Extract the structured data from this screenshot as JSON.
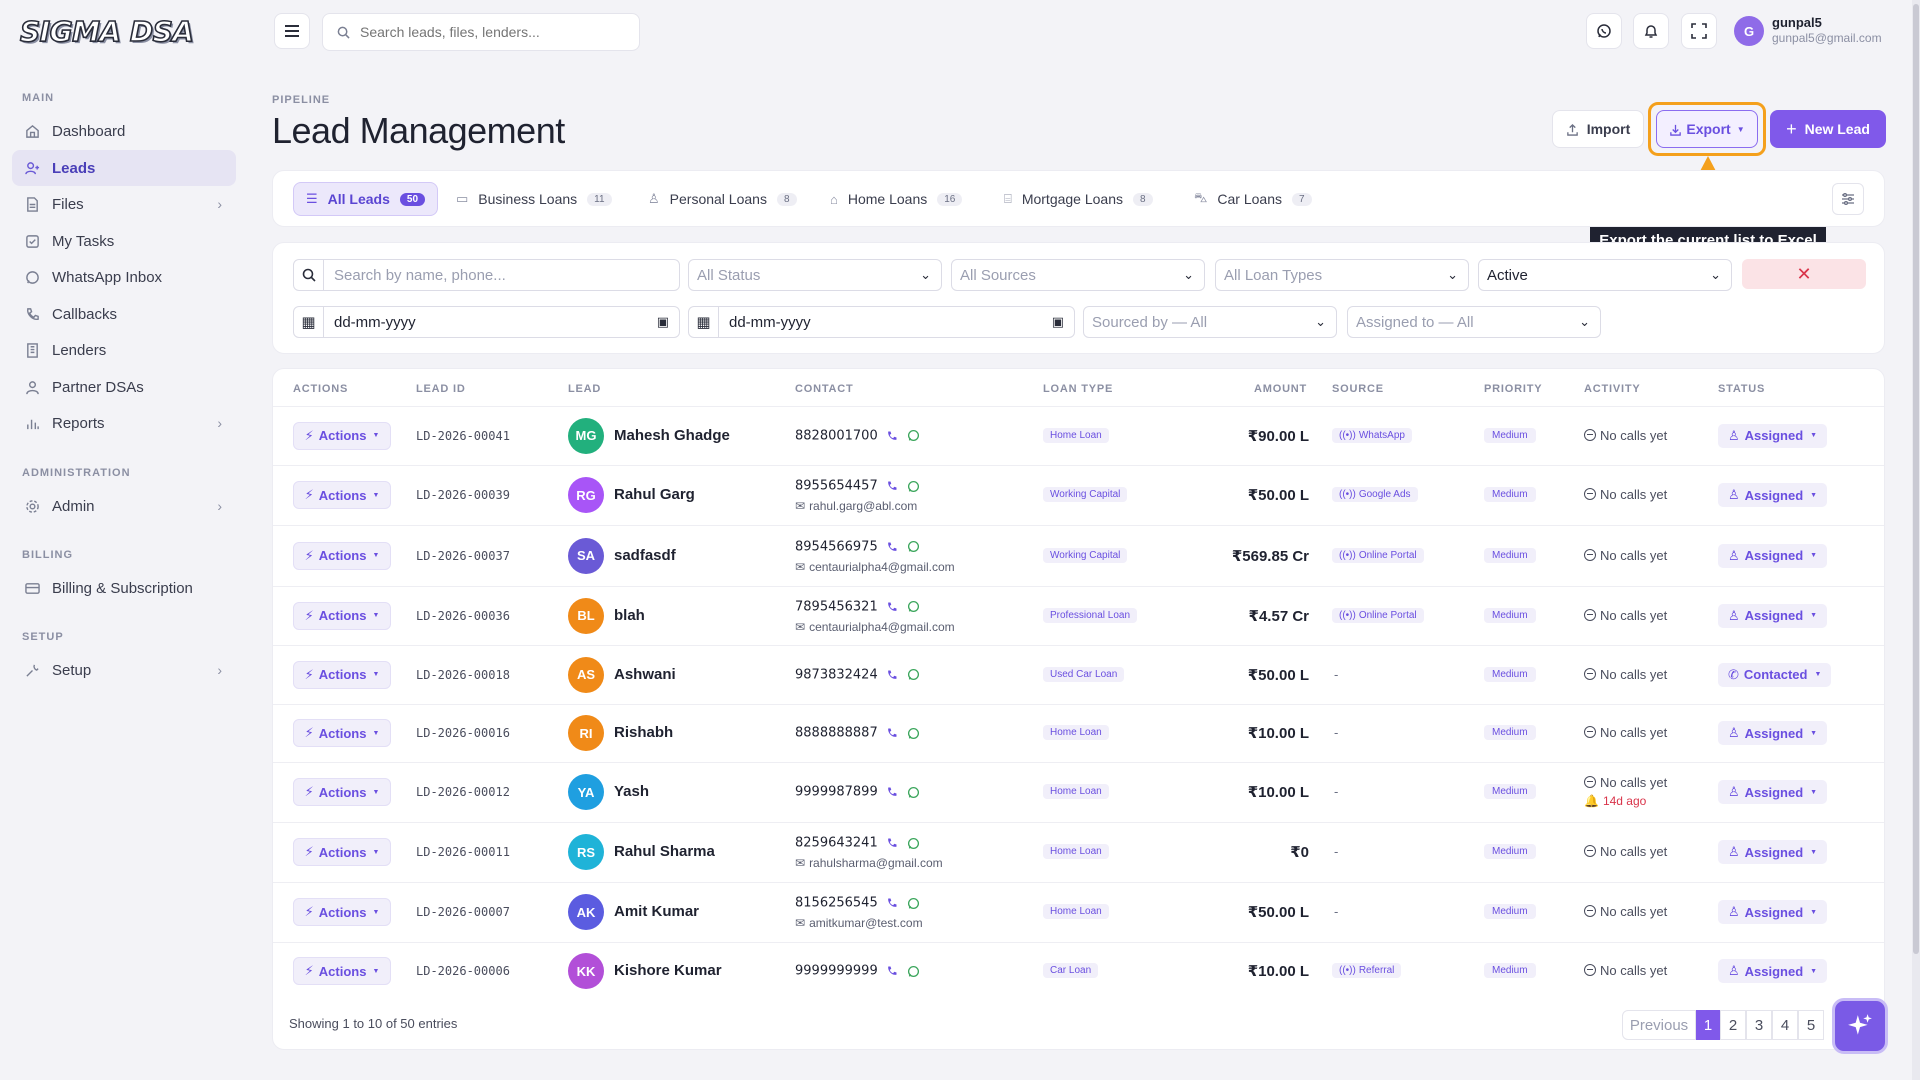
{
  "brand": {
    "logo_text": "SIGMA DSA"
  },
  "sidebar": {
    "sections": {
      "main": "MAIN",
      "administration": "ADMINISTRATION",
      "billing": "BILLING",
      "setup": "SETUP"
    },
    "items": [
      {
        "label": "Dashboard",
        "icon": "home-icon"
      },
      {
        "label": "Leads",
        "icon": "user-plus-icon",
        "active": true
      },
      {
        "label": "Files",
        "icon": "file-icon",
        "has_children": true
      },
      {
        "label": "My Tasks",
        "icon": "task-icon"
      },
      {
        "label": "WhatsApp Inbox",
        "icon": "whatsapp-icon"
      },
      {
        "label": "Callbacks",
        "icon": "phone-icon"
      },
      {
        "label": "Lenders",
        "icon": "building-icon"
      },
      {
        "label": "Partner DSAs",
        "icon": "users-icon"
      },
      {
        "label": "Reports",
        "icon": "bar-chart-icon",
        "has_children": true
      },
      {
        "label": "Admin",
        "icon": "gear-icon",
        "has_children": true
      },
      {
        "label": "Billing & Subscription",
        "icon": "card-icon"
      },
      {
        "label": "Setup",
        "icon": "wrench-icon",
        "has_children": true
      }
    ]
  },
  "topbar": {
    "search_placeholder": "Search leads, files, lenders...",
    "user": {
      "initial": "G",
      "name": "gunpal5",
      "email": "gunpal5@gmail.com"
    }
  },
  "page": {
    "eyebrow": "PIPELINE",
    "title": "Lead Management",
    "buttons": {
      "import": "Import",
      "export": "Export",
      "new_lead": "New Lead"
    },
    "tooltip": "Export the current list to Excel"
  },
  "tabs": [
    {
      "label": "All Leads",
      "count": "50",
      "active": true
    },
    {
      "label": "Business Loans",
      "count": "11"
    },
    {
      "label": "Personal Loans",
      "count": "8"
    },
    {
      "label": "Home Loans",
      "count": "16"
    },
    {
      "label": "Mortgage Loans",
      "count": "8"
    },
    {
      "label": "Car Loans",
      "count": "7"
    }
  ],
  "filters": {
    "search_placeholder": "Search by name, phone...",
    "status": "All Status",
    "sources": "All Sources",
    "loan_types": "All Loan Types",
    "active": "Active",
    "date_from": "dd-mm-yyyy",
    "date_to": "dd-mm-yyyy",
    "sourced_by": "Sourced by — All",
    "assigned_to": "Assigned to — All"
  },
  "table": {
    "headers": [
      "ACTIONS",
      "LEAD ID",
      "LEAD",
      "CONTACT",
      "LOAN TYPE",
      "AMOUNT",
      "SOURCE",
      "PRIORITY",
      "ACTIVITY",
      "STATUS"
    ],
    "actions_label": "Actions",
    "rows": [
      {
        "id": "LD-2026-00041",
        "initials": "MG",
        "avatar_color": "#22b07d",
        "name": "Mahesh Ghadge",
        "phone": "8828001700",
        "email": "",
        "loan": "Home Loan",
        "amount": "₹90.00 L",
        "source": "WhatsApp",
        "priority": "Medium",
        "activity": "No calls yet",
        "activity_ago": "",
        "status": "Assigned"
      },
      {
        "id": "LD-2026-00039",
        "initials": "RG",
        "avatar_color": "#a855f7",
        "name": "Rahul Garg",
        "phone": "8955654457",
        "email": "rahul.garg@abl.com",
        "loan": "Working Capital",
        "amount": "₹50.00 L",
        "source": "Google Ads",
        "priority": "Medium",
        "activity": "No calls yet",
        "activity_ago": "",
        "status": "Assigned"
      },
      {
        "id": "LD-2026-00037",
        "initials": "SA",
        "avatar_color": "#6a5ad6",
        "name": "sadfasdf",
        "phone": "8954566975",
        "email": "centaurialpha4@gmail.com",
        "loan": "Working Capital",
        "amount": "₹569.85 Cr",
        "source": "Online Portal",
        "priority": "Medium",
        "activity": "No calls yet",
        "activity_ago": "",
        "status": "Assigned"
      },
      {
        "id": "LD-2026-00036",
        "initials": "BL",
        "avatar_color": "#f08a18",
        "name": "blah",
        "phone": "7895456321",
        "email": "centaurialpha4@gmail.com",
        "loan": "Professional Loan",
        "amount": "₹4.57 Cr",
        "source": "Online Portal",
        "priority": "Medium",
        "activity": "No calls yet",
        "activity_ago": "",
        "status": "Assigned"
      },
      {
        "id": "LD-2026-00018",
        "initials": "AS",
        "avatar_color": "#f08a18",
        "name": "Ashwani",
        "phone": "9873832424",
        "email": "",
        "loan": "Used Car Loan",
        "amount": "₹50.00 L",
        "source": "-",
        "priority": "Medium",
        "activity": "No calls yet",
        "activity_ago": "",
        "status": "Contacted"
      },
      {
        "id": "LD-2026-00016",
        "initials": "RI",
        "avatar_color": "#f08a18",
        "name": "Rishabh",
        "phone": "8888888887",
        "email": "",
        "loan": "Home Loan",
        "amount": "₹10.00 L",
        "source": "-",
        "priority": "Medium",
        "activity": "No calls yet",
        "activity_ago": "",
        "status": "Assigned"
      },
      {
        "id": "LD-2026-00012",
        "initials": "YA",
        "avatar_color": "#1f9fe0",
        "name": "Yash",
        "phone": "9999987899",
        "email": "",
        "loan": "Home Loan",
        "amount": "₹10.00 L",
        "source": "-",
        "priority": "Medium",
        "activity": "No calls yet",
        "activity_ago": "14d ago",
        "status": "Assigned"
      },
      {
        "id": "LD-2026-00011",
        "initials": "RS",
        "avatar_color": "#1fb3d8",
        "name": "Rahul Sharma",
        "phone": "8259643241",
        "email": "rahulsharma@gmail.com",
        "loan": "Home Loan",
        "amount": "₹0",
        "source": "-",
        "priority": "Medium",
        "activity": "No calls yet",
        "activity_ago": "",
        "status": "Assigned"
      },
      {
        "id": "LD-2026-00007",
        "initials": "AK",
        "avatar_color": "#5b5ce0",
        "name": "Amit Kumar",
        "phone": "8156256545",
        "email": "amitkumar@test.com",
        "loan": "Home Loan",
        "amount": "₹50.00 L",
        "source": "-",
        "priority": "Medium",
        "activity": "No calls yet",
        "activity_ago": "",
        "status": "Assigned"
      },
      {
        "id": "LD-2026-00006",
        "initials": "KK",
        "avatar_color": "#b24fd8",
        "name": "Kishore Kumar",
        "phone": "9999999999",
        "email": "",
        "loan": "Car Loan",
        "amount": "₹10.00 L",
        "source": "Referral",
        "priority": "Medium",
        "activity": "No calls yet",
        "activity_ago": "",
        "status": "Assigned"
      }
    ]
  },
  "pagination": {
    "showing": "Showing 1 to 10 of 50 entries",
    "previous": "Previous",
    "pages": [
      "1",
      "2",
      "3",
      "4",
      "5"
    ],
    "current": "1"
  },
  "colors": {
    "accent": "#8059ea",
    "highlight": "#f4a01c"
  }
}
